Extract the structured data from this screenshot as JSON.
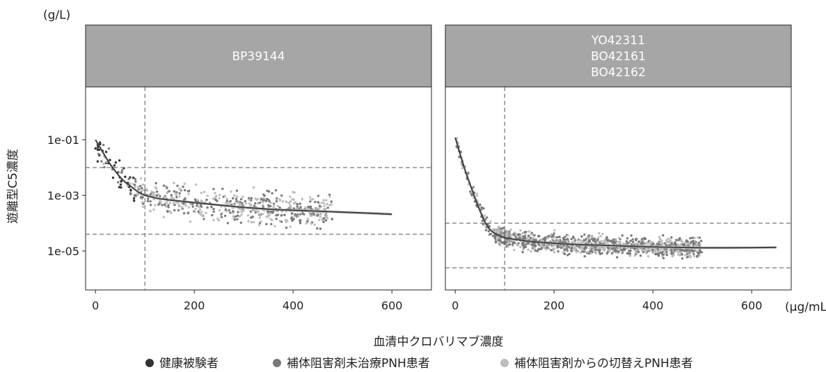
{
  "chart_data": {
    "type": "scatter",
    "y_unit": "(g/L)",
    "x_unit": "(μg/mL)",
    "xlabel": "血清中クロバリマブ濃度",
    "ylabel": "遊離型C5濃度",
    "y_scale": "log",
    "y_ticks": [
      "1e-01",
      "1e-03",
      "1e-05"
    ],
    "x_ticks": [
      "0",
      "200",
      "400",
      "600"
    ],
    "xlim": [
      -20,
      680
    ],
    "ylim_log10": [
      -6.4,
      0.9
    ],
    "legend": {
      "placement": "bottom",
      "entries": [
        {
          "label": "健康被験者",
          "color": "#333333"
        },
        {
          "label": "補体阻害剤未治療PNH患者",
          "color": "#7a7a7a"
        },
        {
          "label": "補体阻害剤からの切替えPNH患者",
          "color": "#bdbdbd"
        }
      ]
    },
    "panels": [
      {
        "strip": [
          "BP39144"
        ],
        "vline_x": 100,
        "hlines_y": [
          0.01,
          4e-05
        ],
        "fit_curve": [
          [
            0,
            0.1
          ],
          [
            10,
            0.05
          ],
          [
            20,
            0.025
          ],
          [
            30,
            0.013
          ],
          [
            40,
            0.0075
          ],
          [
            50,
            0.0045
          ],
          [
            60,
            0.003
          ],
          [
            70,
            0.0022
          ],
          [
            80,
            0.0016
          ],
          [
            90,
            0.0012
          ],
          [
            100,
            0.001
          ],
          [
            125,
            0.00078
          ],
          [
            150,
            0.00068
          ],
          [
            200,
            0.00055
          ],
          [
            250,
            0.00045
          ],
          [
            300,
            0.00037
          ],
          [
            350,
            0.00032
          ],
          [
            400,
            0.00029
          ],
          [
            450,
            0.00027
          ],
          [
            500,
            0.00025
          ],
          [
            550,
            0.00023
          ],
          [
            600,
            0.00021
          ]
        ]
      },
      {
        "strip": [
          "YO42311",
          "BO42161",
          "BO42162"
        ],
        "vline_x": 100,
        "hlines_y": [
          0.0001,
          2.5e-06
        ],
        "fit_curve": [
          [
            0,
            0.12
          ],
          [
            5,
            0.06
          ],
          [
            10,
            0.03
          ],
          [
            20,
            0.008
          ],
          [
            30,
            0.0025
          ],
          [
            40,
            0.0008
          ],
          [
            50,
            0.00028
          ],
          [
            60,
            0.00011
          ],
          [
            70,
            6e-05
          ],
          [
            80,
            4.2e-05
          ],
          [
            90,
            3.5e-05
          ],
          [
            100,
            3e-05
          ],
          [
            150,
            2.2e-05
          ],
          [
            200,
            1.9e-05
          ],
          [
            250,
            1.7e-05
          ],
          [
            300,
            1.6e-05
          ],
          [
            350,
            1.5e-05
          ],
          [
            400,
            1.4e-05
          ],
          [
            450,
            1.35e-05
          ],
          [
            500,
            1.3e-05
          ],
          [
            550,
            1.3e-05
          ],
          [
            600,
            1.32e-05
          ],
          [
            650,
            1.35e-05
          ]
        ]
      }
    ]
  }
}
